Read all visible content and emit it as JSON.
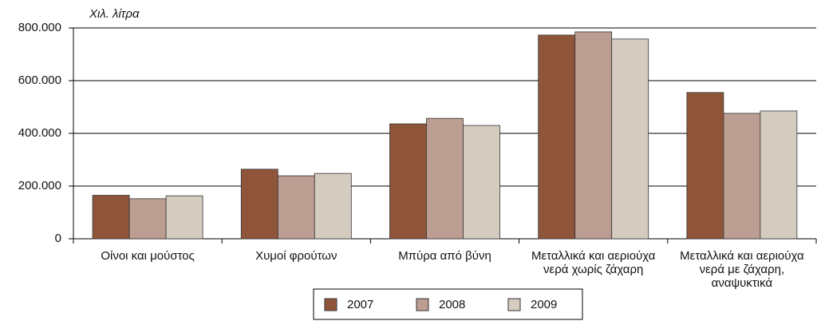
{
  "chart_data": {
    "type": "bar",
    "y_axis_label": "Χιλ. λίτρα",
    "categories": [
      "Οίνοι και μούστος",
      "Χυμοί φρούτων",
      "Μπύρα από βύνη",
      "Μεταλλικά και αεριούχα νερά χωρίς ζάχαρη",
      "Μεταλλικά και αεριούχα νερά με ζάχαρη, αναψυκτικά"
    ],
    "series": [
      {
        "name": "2007",
        "color": "#8f553a",
        "values": [
          165000,
          264000,
          436000,
          773000,
          555000
        ]
      },
      {
        "name": "2008",
        "color": "#bc9d91",
        "values": [
          152000,
          239000,
          457000,
          785000,
          476000
        ]
      },
      {
        "name": "2009",
        "color": "#d5ccc0",
        "values": [
          163000,
          248000,
          430000,
          758000,
          485000
        ]
      }
    ],
    "ylim": [
      0,
      800000
    ],
    "yticks": [
      0,
      {
        "value": 200000,
        "label": "200.000"
      },
      {
        "value": 400000,
        "label": "400.000"
      },
      {
        "value": 600000,
        "label": "600.000"
      },
      {
        "value": 800000,
        "label": "800.000"
      }
    ],
    "grid": true,
    "legend": "bottom"
  }
}
